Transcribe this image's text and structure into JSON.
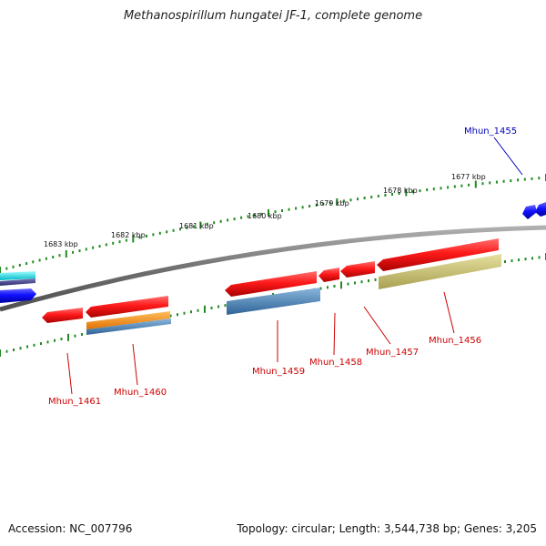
{
  "header": {
    "title": "Methanospirillum hungatei JF-1, complete genome"
  },
  "footer": {
    "accession": "Accession: NC_007796",
    "topology": "Topology: circular; Length: 3,544,738 bp; Genes: 3,205"
  },
  "ticks": [
    {
      "label": "1683 kbp"
    },
    {
      "label": "1682 kbp"
    },
    {
      "label": "1681 kbp"
    },
    {
      "label": "1680 kbp"
    },
    {
      "label": "1679 kbp"
    },
    {
      "label": "1678 kbp"
    },
    {
      "label": "1677 kbp"
    }
  ],
  "genes": [
    {
      "label": "Mhun_1455",
      "color": "#0000bb"
    },
    {
      "label": "Mhun_1456",
      "color": "#cc0000"
    },
    {
      "label": "Mhun_1457",
      "color": "#cc0000"
    },
    {
      "label": "Mhun_1458",
      "color": "#cc0000"
    },
    {
      "label": "Mhun_1459",
      "color": "#cc0000"
    },
    {
      "label": "Mhun_1460",
      "color": "#cc0000"
    },
    {
      "label": "Mhun_1461",
      "color": "#cc0000"
    }
  ],
  "colors": {
    "backbone": "#808080",
    "tick": "#228b22",
    "gene_forward": "#ff1a1a",
    "gene_blue": "#1a1aff",
    "cyan": "#00e5ee",
    "orange": "#ff8c00",
    "steelblue": "#4682b4",
    "khaki": "#bdb76b"
  }
}
